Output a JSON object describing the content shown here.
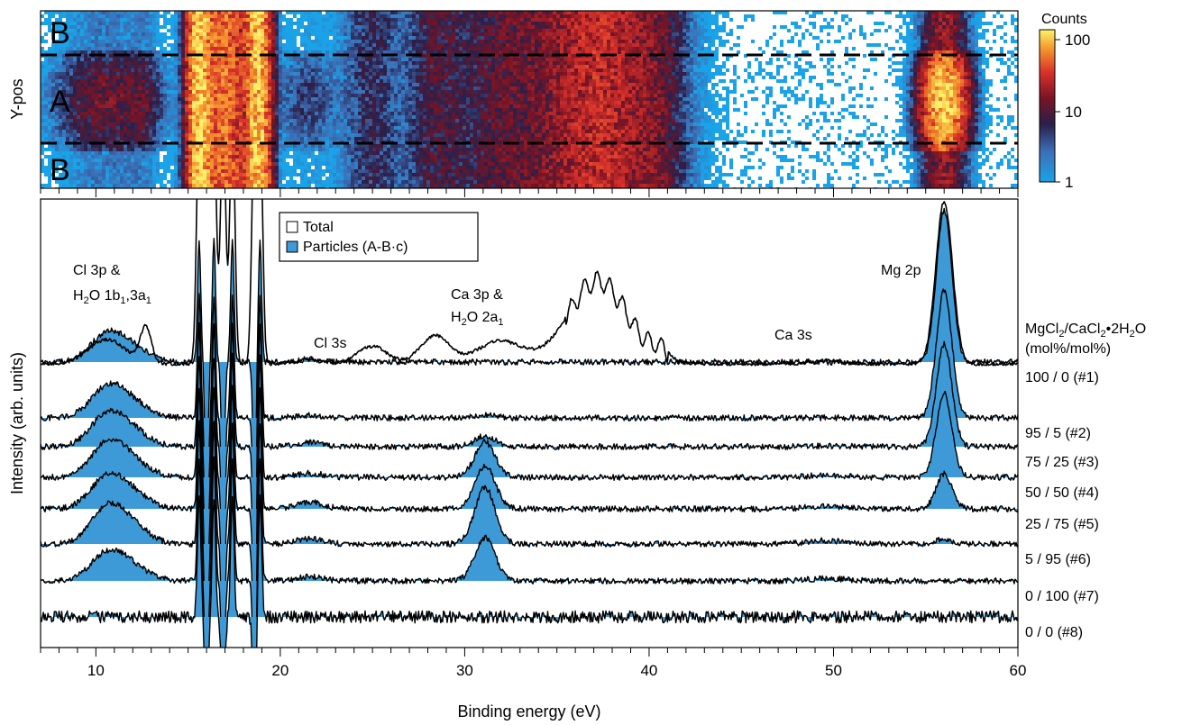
{
  "chart_data": [
    {
      "type": "heatmap",
      "ylabel": "Y-pos",
      "region_labels": {
        "top": "B",
        "middle": "A",
        "bottom": "B"
      },
      "colorbar": {
        "title": "Counts",
        "scale": "log",
        "ticks": [
          "100",
          "10",
          "1"
        ],
        "range": [
          1,
          150
        ]
      },
      "xlim": [
        7,
        60
      ],
      "hotspots": [
        {
          "x": 10.6,
          "width": 1.6,
          "y_extent": "A",
          "intensity": 14
        },
        {
          "x": 12.6,
          "width": 0.5,
          "y_extent": "A",
          "intensity": 6
        },
        {
          "x": 15.6,
          "width": 0.4,
          "y_extent": "all",
          "intensity": 120
        },
        {
          "x": 17.0,
          "width": 0.7,
          "y_extent": "all",
          "intensity": 60
        },
        {
          "x": 18.8,
          "width": 0.4,
          "y_extent": "all",
          "intensity": 120
        },
        {
          "x": 21.5,
          "width": 1.0,
          "y_extent": "A",
          "intensity": 5
        },
        {
          "x": 25.0,
          "width": 1.0,
          "y_extent": "all",
          "intensity": 6
        },
        {
          "x": 28.5,
          "width": 1.0,
          "y_extent": "all",
          "intensity": 9
        },
        {
          "x": 32.0,
          "width": 1.5,
          "y_extent": "all",
          "intensity": 10
        },
        {
          "x": 37.2,
          "width": 2.2,
          "y_extent": "all",
          "intensity": 30
        },
        {
          "x": 40.5,
          "width": 0.8,
          "y_extent": "all",
          "intensity": 6
        },
        {
          "x": 56.0,
          "width": 0.7,
          "y_extent": "A",
          "intensity": 130
        }
      ]
    },
    {
      "type": "line",
      "xlabel": "Binding energy (eV)",
      "ylabel": "Intensity (arb. units)",
      "xlim": [
        7,
        60
      ],
      "x_ticks": [
        10,
        20,
        30,
        40,
        50,
        60
      ],
      "legend": {
        "placement": "top-center",
        "entries": [
          {
            "label": "Total",
            "color": "#ffffff"
          },
          {
            "label": "Particles (A-B·c)",
            "color": "#3d9ad6"
          }
        ]
      },
      "annotations": [
        {
          "label": "Cl 3p &",
          "x": 10.8
        },
        {
          "label": "H2O 1b1,3a1",
          "x": 11.0
        },
        {
          "label": "Cl 3s",
          "x": 21.5
        },
        {
          "label": "Ca 3p &",
          "x": 31.2
        },
        {
          "label": "H2O 2a1",
          "x": 31.5
        },
        {
          "label": "Ca 3s",
          "x": 49.5
        },
        {
          "label": "Mg 2p",
          "x": 56.2
        }
      ],
      "composition_header": {
        "line1": "MgCl2/CaCl2•2H2O",
        "line2": "(mol%/mol%)"
      },
      "fill_color": "#3d9ad6",
      "total": {
        "name": "Total",
        "peaks": [
          {
            "center": 10.6,
            "width": 1.0,
            "height": 0.9
          },
          {
            "center": 12.7,
            "width": 0.3,
            "height": 1.3
          },
          {
            "center": 21.6,
            "width": 0.6,
            "height": 0.18
          },
          {
            "center": 25.0,
            "width": 0.8,
            "height": 0.65
          },
          {
            "center": 28.4,
            "width": 0.8,
            "height": 1.05
          },
          {
            "center": 31.9,
            "width": 1.2,
            "height": 0.85
          },
          {
            "center": 37.2,
            "width": 1.6,
            "height": 3.05
          },
          {
            "center": 40.6,
            "width": 0.5,
            "height": 0.35
          },
          {
            "center": 49.6,
            "width": 0.8,
            "height": 0.12
          },
          {
            "center": 56.0,
            "width": 0.45,
            "height": 6.0
          }
        ]
      },
      "series": [
        {
          "name": "100 / 0 (#1)",
          "Cl_3p": 1.0,
          "Ca_3p": 0.0,
          "Mg_2p": 5.6,
          "Cl_3s": 0.1
        },
        {
          "name": "95 / 5 (#2)",
          "Cl_3p": 1.1,
          "Ca_3p": 0.1,
          "Mg_2p": 4.7,
          "Cl_3s": 0.1
        },
        {
          "name": "75 / 25 (#3)",
          "Cl_3p": 1.15,
          "Ca_3p": 0.4,
          "Mg_2p": 3.8,
          "Cl_3s": 0.15
        },
        {
          "name": "50 / 50 (#4)",
          "Cl_3p": 1.2,
          "Ca_3p": 1.3,
          "Mg_2p": 3.1,
          "Cl_3s": 0.15
        },
        {
          "name": "25 / 75 (#5)",
          "Cl_3p": 1.15,
          "Ca_3p": 1.6,
          "Mg_2p": 1.3,
          "Cl_3s": 0.25
        },
        {
          "name": "5 / 95 (#6)",
          "Cl_3p": 1.3,
          "Ca_3p": 2.1,
          "Mg_2p": 0.2,
          "Cl_3s": 0.2
        },
        {
          "name": "0 / 100 (#7)",
          "Cl_3p": 1.0,
          "Ca_3p": 1.6,
          "Mg_2p": 0.0,
          "Cl_3s": 0.15
        },
        {
          "name": "0 / 0 (#8)",
          "Cl_3p": 0.0,
          "Ca_3p": 0.0,
          "Mg_2p": 0.0,
          "Cl_3s": 0.0
        }
      ]
    }
  ]
}
